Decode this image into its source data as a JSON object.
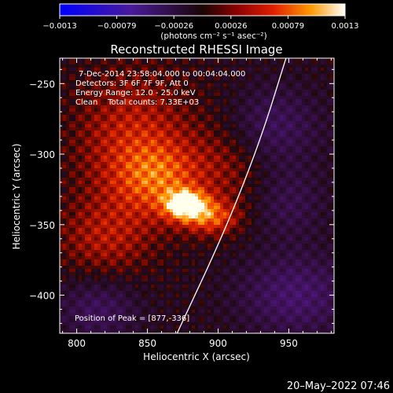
{
  "chart_data": {
    "type": "heatmap",
    "title": "Reconstructed RHESSI Image",
    "xlabel": "Heliocentric X (arcsec)",
    "ylabel": "Heliocentric Y (arcsec)",
    "xlim": [
      788,
      982
    ],
    "ylim": [
      -427,
      -232
    ],
    "x_ticks": [
      800,
      850,
      900,
      950
    ],
    "y_ticks": [
      -250,
      -300,
      -350,
      -400
    ],
    "x_tick_labels": [
      "800",
      "850",
      "900",
      "950"
    ],
    "y_tick_labels": [
      "−250",
      "−300",
      "−350",
      "−400"
    ],
    "colorbar": {
      "range": [
        -0.0013,
        0.0013
      ],
      "tick_labels": [
        "−0.0013",
        "−0.00079",
        "−0.00026",
        "0.00026",
        "0.00079",
        "0.0013"
      ],
      "units_label": "(photons cm⁻² s⁻¹ asec⁻²)"
    },
    "annotations": [
      "7-Dec-2014 23:58:04.000 to 00:04:04.000",
      "Detectors: 3F 6F 7F 9F, Att 0",
      "Energy Range: 12.0 - 25.0 keV",
      "Clean    Total counts: 7.33E+03"
    ],
    "peak_label": "Position of Peak = [877,-336]",
    "peak": {
      "x": 877,
      "y": -336
    },
    "limb_curve": [
      [
        871,
        -427
      ],
      [
        905,
        -354
      ],
      [
        930,
        -290
      ],
      [
        948,
        -232
      ]
    ],
    "emission_sources": [
      {
        "x": 877,
        "y": -336,
        "amp": 1.0,
        "sx": 10,
        "sy": 7
      },
      {
        "x": 895,
        "y": -345,
        "amp": 0.55,
        "sx": 14,
        "sy": 9
      },
      {
        "x": 860,
        "y": -318,
        "amp": 0.45,
        "sx": 22,
        "sy": 18
      },
      {
        "x": 840,
        "y": -290,
        "amp": 0.45,
        "sx": 30,
        "sy": 35
      },
      {
        "x": 820,
        "y": -360,
        "amp": 0.35,
        "sx": 25,
        "sy": 20
      },
      {
        "x": 910,
        "y": -300,
        "amp": 0.3,
        "sx": 20,
        "sy": 28
      }
    ],
    "negative_regions": [
      {
        "x": 935,
        "y": -280,
        "amp": 0.45,
        "sx": 25,
        "sy": 20
      },
      {
        "x": 955,
        "y": -400,
        "amp": 0.5,
        "sx": 28,
        "sy": 20
      },
      {
        "x": 815,
        "y": -410,
        "amp": 0.4,
        "sx": 20,
        "sy": 15
      },
      {
        "x": 950,
        "y": -335,
        "amp": 0.3,
        "sx": 18,
        "sy": 18
      }
    ]
  },
  "timestamp": "20–May–2022 07:46",
  "colors": {
    "limb": "#ffffff",
    "axis": "#ffffff",
    "background": "#000000"
  }
}
